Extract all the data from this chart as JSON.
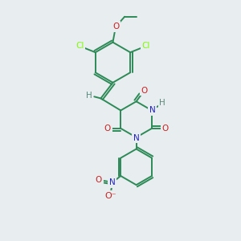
{
  "bg_color": "#e8edf0",
  "bond_color": "#2d8a57",
  "atom_colors": {
    "C": "#2d8a57",
    "H": "#5a8a7a",
    "N": "#2020cc",
    "O": "#cc2020",
    "Cl": "#7cfc00"
  },
  "figsize": [
    3.0,
    3.0
  ],
  "dpi": 100,
  "xlim": [
    0,
    10
  ],
  "ylim": [
    0,
    11
  ]
}
